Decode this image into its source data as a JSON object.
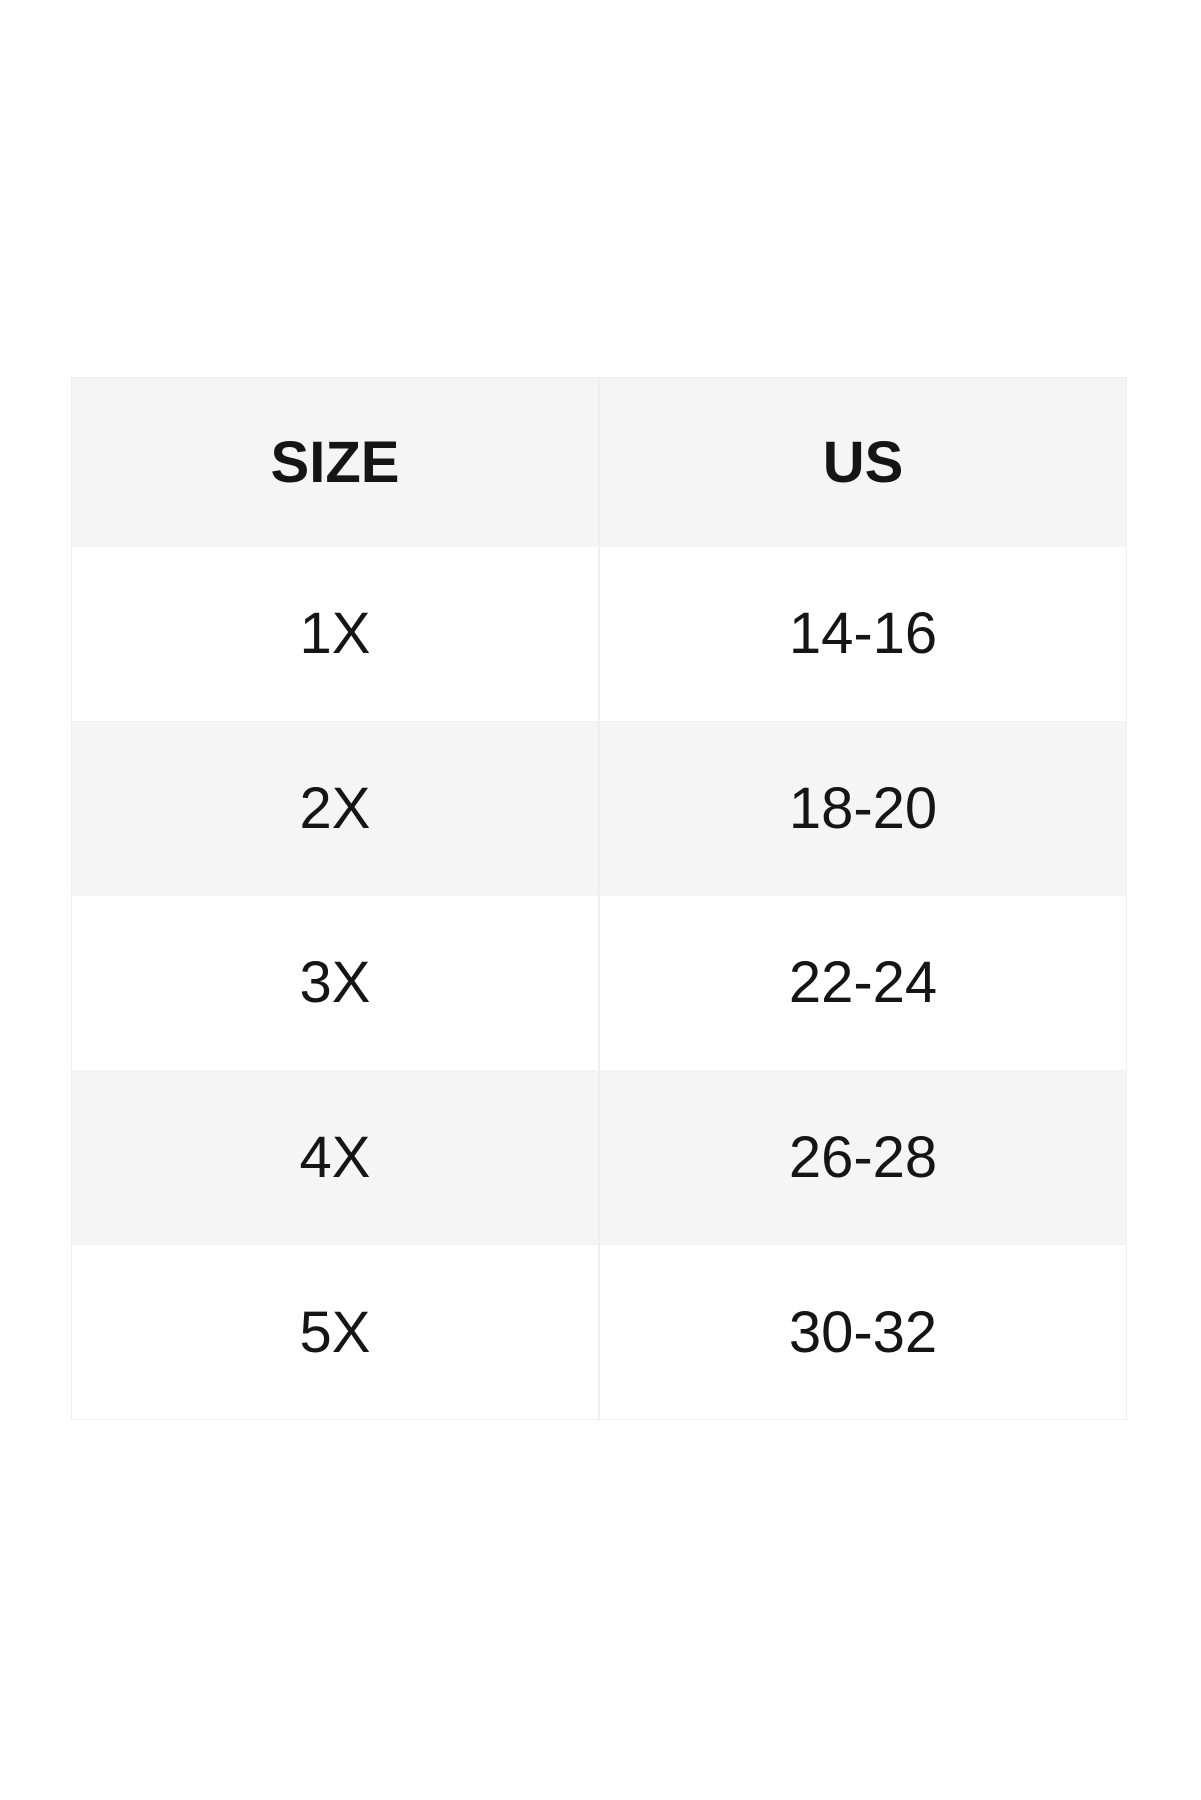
{
  "theme": {
    "page_bg": "#ffffff",
    "header_bg": "#f5f5f6",
    "row_bg": "#ffffff",
    "row_alt_bg": "#f5f5f6",
    "divider": "#efefef",
    "row_border": "#f2f2f2",
    "text": "#151515"
  },
  "size_chart": {
    "headers": {
      "size": "SIZE",
      "us": "US"
    },
    "rows": [
      {
        "size": "1X",
        "us": "14-16"
      },
      {
        "size": "2X",
        "us": "18-20"
      },
      {
        "size": "3X",
        "us": "22-24"
      },
      {
        "size": "4X",
        "us": "26-28"
      },
      {
        "size": "5X",
        "us": "30-32"
      }
    ]
  }
}
